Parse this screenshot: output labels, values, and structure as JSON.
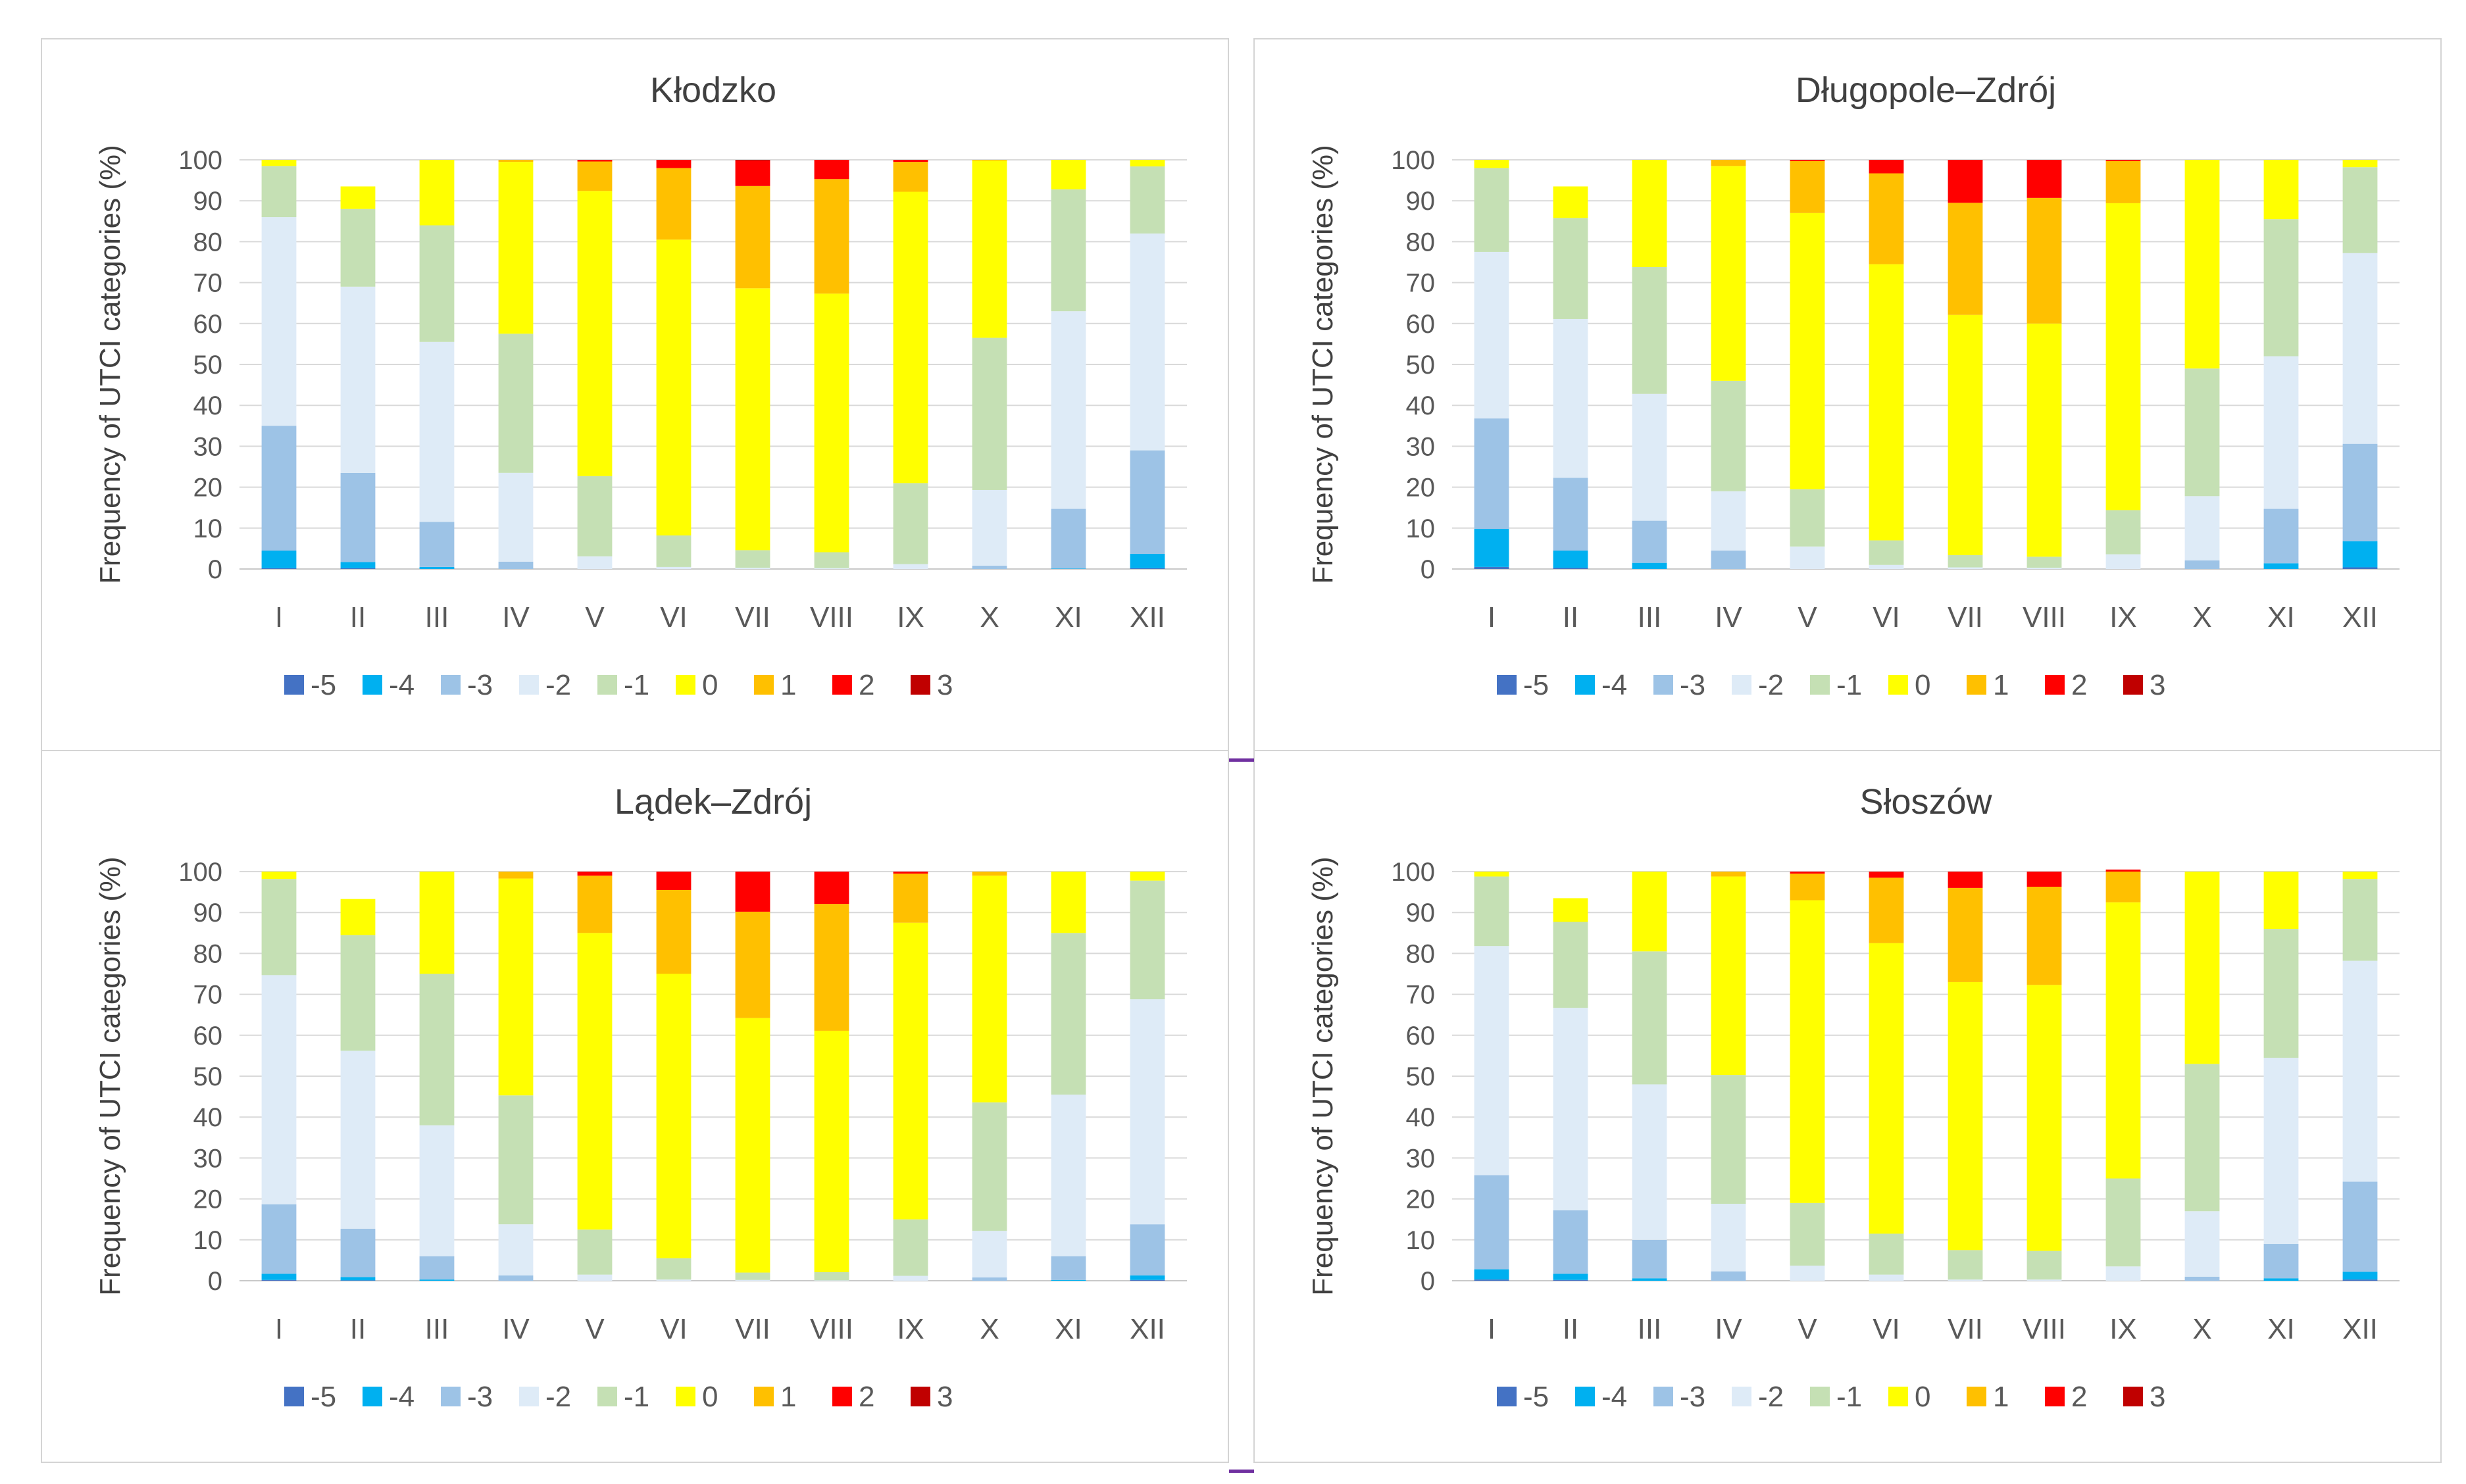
{
  "colors": {
    "-5": "#4472c4",
    "-4": "#00b0f0",
    "-3": "#9dc3e6",
    "-2": "#deebf7",
    "-1": "#c5e0b4",
    "0": "#ffff00",
    "1": "#ffc000",
    "2": "#ff0000",
    "3": "#c00000"
  },
  "chart_data": [
    {
      "type": "bar",
      "stacked": true,
      "title": "Kłodzko",
      "ylabel": "Frequency of UTCI categories (%)",
      "xlabel": "",
      "ylim": [
        0,
        100
      ],
      "yticks": [
        "0",
        "10",
        "20",
        "30",
        "40",
        "50",
        "60",
        "70",
        "80",
        "90",
        "100"
      ],
      "categories": [
        "I",
        "II",
        "III",
        "IV",
        "V",
        "VI",
        "VII",
        "VIII",
        "IX",
        "X",
        "XI",
        "XII"
      ],
      "legend": [
        "-5",
        "-4",
        "-3",
        "-2",
        "-1",
        "0",
        "1",
        "2",
        "3"
      ],
      "legend_position": "bottom",
      "grid": true,
      "series": [
        {
          "name": "-5",
          "values": [
            0.2,
            0.2,
            0,
            0,
            0,
            0,
            0,
            0,
            0,
            0,
            0,
            0.2
          ]
        },
        {
          "name": "-4",
          "values": [
            4.3,
            1.5,
            0.5,
            0,
            0,
            0,
            0,
            0,
            0,
            0,
            0.1,
            3.5
          ]
        },
        {
          "name": "-3",
          "values": [
            30.5,
            21.8,
            11,
            1.8,
            0,
            0,
            0,
            0,
            0,
            0.8,
            14.6,
            25.3
          ]
        },
        {
          "name": "-2",
          "values": [
            51,
            45.5,
            44,
            21.7,
            3.1,
            0.5,
            0.3,
            0.2,
            1.2,
            18.5,
            48.3,
            53
          ]
        },
        {
          "name": "-1",
          "values": [
            12.5,
            19,
            28.5,
            34,
            19.6,
            7.7,
            4.3,
            3.9,
            19.8,
            37.2,
            29.8,
            16.4
          ]
        },
        {
          "name": "0",
          "values": [
            1.5,
            5.5,
            16,
            42,
            69.7,
            72.3,
            64,
            63.2,
            71.2,
            43.3,
            7.2,
            1.6
          ]
        },
        {
          "name": "1",
          "values": [
            0,
            0,
            0,
            0.5,
            7.2,
            17.5,
            25,
            28,
            7.3,
            0.2,
            0,
            0
          ]
        },
        {
          "name": "2",
          "values": [
            0,
            0,
            0,
            0,
            0.4,
            2,
            6.2,
            4.7,
            0.5,
            0,
            0,
            0
          ]
        },
        {
          "name": "3",
          "values": [
            0,
            0,
            0,
            0,
            0,
            0,
            0.2,
            0,
            0,
            0,
            0,
            0
          ]
        }
      ]
    },
    {
      "type": "bar",
      "stacked": true,
      "title": "Długopole–Zdrój",
      "ylabel": "Frequency of UTCI categories (%)",
      "xlabel": "",
      "ylim": [
        0,
        100
      ],
      "yticks": [
        "0",
        "10",
        "20",
        "30",
        "40",
        "50",
        "60",
        "70",
        "80",
        "90",
        "100"
      ],
      "categories": [
        "I",
        "II",
        "III",
        "IV",
        "V",
        "VI",
        "VII",
        "VIII",
        "IX",
        "X",
        "XI",
        "XII"
      ],
      "legend": [
        "-5",
        "-4",
        "-3",
        "-2",
        "-1",
        "0",
        "1",
        "2",
        "3"
      ],
      "legend_position": "bottom",
      "grid": true,
      "series": [
        {
          "name": "-5",
          "values": [
            0.5,
            0.3,
            0,
            0,
            0,
            0,
            0,
            0,
            0,
            0,
            0,
            0.4
          ]
        },
        {
          "name": "-4",
          "values": [
            9.3,
            4.2,
            1.5,
            0,
            0,
            0,
            0,
            0,
            0,
            0,
            1.4,
            6.4
          ]
        },
        {
          "name": "-3",
          "values": [
            27,
            17.8,
            10.3,
            4.5,
            0,
            0,
            0,
            0,
            0,
            2.1,
            13.3,
            23.8
          ]
        },
        {
          "name": "-2",
          "values": [
            40.7,
            38.8,
            31,
            14.5,
            5.5,
            1,
            0.4,
            0.3,
            3.6,
            15.7,
            37.3,
            46.6
          ]
        },
        {
          "name": "-1",
          "values": [
            20.5,
            24.7,
            31,
            27,
            14,
            6,
            3,
            2.7,
            10.8,
            31.2,
            33.5,
            21
          ]
        },
        {
          "name": "0",
          "values": [
            2,
            7.7,
            26.2,
            52.5,
            67.5,
            67.5,
            58.7,
            57,
            75,
            51,
            14.5,
            1.8
          ]
        },
        {
          "name": "1",
          "values": [
            0,
            0,
            0,
            1.5,
            12.7,
            22.2,
            27.4,
            30.7,
            10.3,
            0,
            0,
            0
          ]
        },
        {
          "name": "2",
          "values": [
            0,
            0,
            0,
            0,
            0.3,
            3.3,
            10.5,
            9.3,
            0.3,
            0,
            0,
            0
          ]
        },
        {
          "name": "3",
          "values": [
            0,
            0,
            0,
            0,
            0,
            0,
            0,
            0,
            0,
            0,
            0,
            0
          ]
        }
      ]
    },
    {
      "type": "bar",
      "stacked": true,
      "title": "Lądek–Zdrój",
      "ylabel": "Frequency of UTCI categories (%)",
      "xlabel": "",
      "ylim": [
        0,
        100
      ],
      "yticks": [
        "0",
        "10",
        "20",
        "30",
        "40",
        "50",
        "60",
        "70",
        "80",
        "90",
        "100"
      ],
      "categories": [
        "I",
        "II",
        "III",
        "IV",
        "V",
        "VI",
        "VII",
        "VIII",
        "IX",
        "X",
        "XI",
        "XII"
      ],
      "legend": [
        "-5",
        "-4",
        "-3",
        "-2",
        "-1",
        "0",
        "1",
        "2",
        "3"
      ],
      "legend_position": "bottom",
      "grid": true,
      "series": [
        {
          "name": "-5",
          "values": [
            0.2,
            0.1,
            0,
            0,
            0,
            0,
            0,
            0,
            0,
            0,
            0,
            0.2
          ]
        },
        {
          "name": "-4",
          "values": [
            1.5,
            0.8,
            0.3,
            0,
            0,
            0,
            0,
            0,
            0,
            0,
            0.2,
            1.1
          ]
        },
        {
          "name": "-3",
          "values": [
            17,
            11.8,
            5.7,
            1.3,
            0,
            0,
            0,
            0,
            0,
            0.8,
            5.8,
            12.5
          ]
        },
        {
          "name": "-2",
          "values": [
            56,
            43.5,
            32,
            12.5,
            1.5,
            0.3,
            0.2,
            0.1,
            1.2,
            11.4,
            39.5,
            55
          ]
        },
        {
          "name": "-1",
          "values": [
            23.5,
            28.3,
            37,
            31.5,
            11,
            5.2,
            1.8,
            2,
            13.8,
            31.4,
            39.5,
            29
          ]
        },
        {
          "name": "0",
          "values": [
            1.8,
            8.8,
            25,
            53,
            72.5,
            69.5,
            62.2,
            59,
            72.5,
            55.4,
            15,
            2.2
          ]
        },
        {
          "name": "1",
          "values": [
            0,
            0,
            0,
            1.7,
            14,
            20.5,
            26,
            31,
            12,
            1,
            0,
            0
          ]
        },
        {
          "name": "2",
          "values": [
            0,
            0,
            0,
            0,
            1,
            4.5,
            9.8,
            7.9,
            0.5,
            0,
            0,
            0
          ]
        },
        {
          "name": "3",
          "values": [
            0,
            0,
            0,
            0,
            0,
            0,
            0,
            0,
            0,
            0,
            0,
            0
          ]
        }
      ]
    },
    {
      "type": "bar",
      "stacked": true,
      "title": "Słoszów",
      "ylabel": "Frequency of UTCI categories (%)",
      "xlabel": "",
      "ylim": [
        0,
        100
      ],
      "yticks": [
        "0",
        "10",
        "20",
        "30",
        "40",
        "50",
        "60",
        "70",
        "80",
        "90",
        "100"
      ],
      "categories": [
        "I",
        "II",
        "III",
        "IV",
        "V",
        "VI",
        "VII",
        "VIII",
        "IX",
        "X",
        "XI",
        "XII"
      ],
      "legend": [
        "-5",
        "-4",
        "-3",
        "-2",
        "-1",
        "0",
        "1",
        "2",
        "3"
      ],
      "legend_position": "bottom",
      "grid": true,
      "series": [
        {
          "name": "-5",
          "values": [
            0.3,
            0.2,
            0,
            0,
            0,
            0,
            0,
            0,
            0,
            0,
            0,
            0.3
          ]
        },
        {
          "name": "-4",
          "values": [
            2.5,
            1.5,
            0.6,
            0,
            0,
            0,
            0,
            0,
            0,
            0,
            0.6,
            1.9
          ]
        },
        {
          "name": "-3",
          "values": [
            23,
            15.5,
            9.4,
            2.3,
            0,
            0,
            0,
            0,
            0,
            1,
            8.4,
            22
          ]
        },
        {
          "name": "-2",
          "values": [
            56,
            49.5,
            38,
            16.5,
            3.7,
            1.5,
            0.3,
            0.3,
            3.5,
            16,
            45.5,
            54
          ]
        },
        {
          "name": "-1",
          "values": [
            17,
            21,
            32.5,
            31.5,
            15.3,
            10,
            7.2,
            7,
            21.5,
            36,
            31.5,
            20
          ]
        },
        {
          "name": "0",
          "values": [
            1.2,
            5.8,
            19.5,
            48.5,
            74,
            71,
            65.5,
            65,
            67.5,
            47,
            14,
            1.8
          ]
        },
        {
          "name": "1",
          "values": [
            0,
            0,
            0,
            1.2,
            6.5,
            16,
            23,
            24,
            7.5,
            0,
            0,
            0
          ]
        },
        {
          "name": "2",
          "values": [
            0,
            0,
            0,
            0,
            0.5,
            1.5,
            4,
            3.7,
            0.5,
            0,
            0,
            0
          ]
        },
        {
          "name": "3",
          "values": [
            0,
            0,
            0,
            0,
            0,
            0,
            0,
            0,
            0,
            0,
            0,
            0
          ]
        }
      ]
    }
  ]
}
